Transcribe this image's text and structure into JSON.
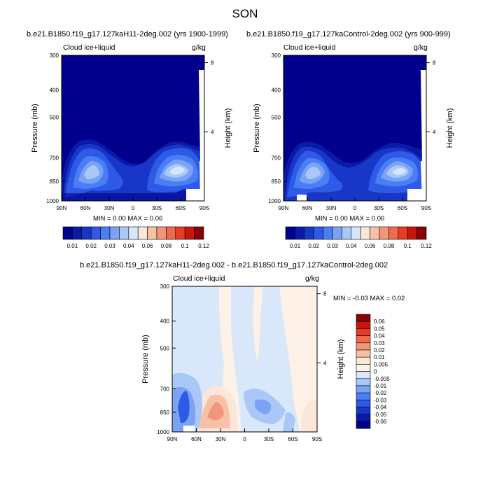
{
  "figure": {
    "title": "SON",
    "colorbar_top_labels": [
      "0.01",
      "0.02",
      "0.03",
      "0.04",
      "0.06",
      "0.08",
      "0.1",
      "0.12"
    ],
    "colorbar_top_colors": [
      "#00008c",
      "#0a1aa8",
      "#1837c8",
      "#2d5ae6",
      "#4a7ef5",
      "#7aa3f5",
      "#a9c7f7",
      "#d6e6fb",
      "#fbe6d9",
      "#f7c1a5",
      "#f2957a",
      "#ee6a4a",
      "#e63d22",
      "#c8160c",
      "#8c0007"
    ],
    "colorbar_diff_labels": [
      "0.06",
      "0.05",
      "0.04",
      "0.03",
      "0.02",
      "0.01",
      "0.005",
      "0",
      "-0.005",
      "-0.01",
      "-0.02",
      "-0.03",
      "-0.04",
      "-0.05",
      "-0.06"
    ],
    "colorbar_diff_colors": [
      "#8c0007",
      "#c8160c",
      "#e63d22",
      "#ee6a4a",
      "#f2957a",
      "#f7c1a5",
      "#fbe6d9",
      "#fdf1e8",
      "#d9e7fb",
      "#a9c7f7",
      "#7aa3f5",
      "#4a7ef5",
      "#2d5ae6",
      "#1837c8",
      "#0a1aa8",
      "#00008c"
    ]
  },
  "chart_data": [
    {
      "type": "heatmap",
      "title": "b.e21.B1850.f19_g17.127kaH11-2deg.002 (yrs 1900-1999)",
      "variable_label": "Cloud ice+liquid",
      "units": "g/kg",
      "ylabel": "Pressure (mb)",
      "ylabel_right": "Height (km)",
      "x_ticks": [
        "90N",
        "60N",
        "30N",
        "0",
        "30S",
        "60S",
        "90S"
      ],
      "y_ticks": [
        "300",
        "400",
        "500",
        "700",
        "850",
        "1000"
      ],
      "right_ticks": [
        "8",
        "4"
      ],
      "min_max_text": "MIN =  0.00  MAX =  0.06",
      "min": 0.0,
      "max": 0.06
    },
    {
      "type": "heatmap",
      "title": "b.e21.B1850.f19_g17.127kaControl-2deg.002 (yrs 900-999)",
      "variable_label": "Cloud ice+liquid",
      "units": "g/kg",
      "ylabel": "Pressure (mb)",
      "ylabel_right": "Height (km)",
      "x_ticks": [
        "90N",
        "60N",
        "30N",
        "0",
        "30S",
        "60S",
        "90S"
      ],
      "y_ticks": [
        "300",
        "400",
        "500",
        "700",
        "850",
        "1000"
      ],
      "right_ticks": [
        "8",
        "4"
      ],
      "min_max_text": "MIN =  0.00  MAX =  0.06",
      "min": 0.0,
      "max": 0.06
    },
    {
      "type": "heatmap",
      "title": "b.e21.B1850.f19_g17.127kaH11-2deg.002 - b.e21.B1850.f19_g17.127kaControl-2deg.002",
      "variable_label": "Cloud ice+liquid",
      "units": "g/kg",
      "ylabel": "Pressure (mb)",
      "ylabel_right": "Height (km)",
      "x_ticks": [
        "90N",
        "60N",
        "30N",
        "0",
        "30S",
        "60S",
        "90S"
      ],
      "y_ticks": [
        "300",
        "400",
        "500",
        "700",
        "850",
        "1000"
      ],
      "right_ticks": [
        "8",
        "4"
      ],
      "min_max_text": "MIN = -0.03  MAX =  0.02",
      "min": -0.03,
      "max": 0.02
    }
  ]
}
